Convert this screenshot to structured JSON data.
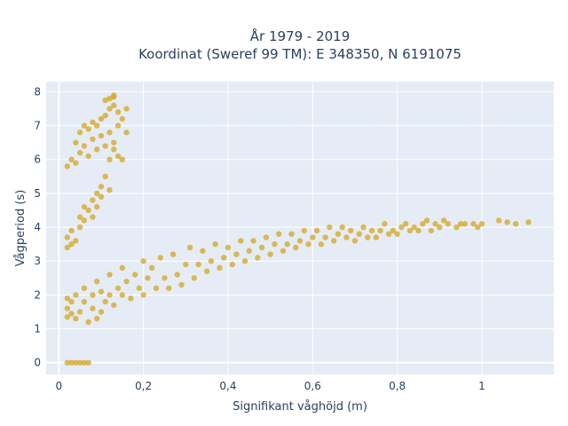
{
  "chart_data": {
    "type": "scatter",
    "title": "År 1979 - 2019",
    "subtitle": "Koordinat (Sweref 99 TM): E 348350, N 6191075",
    "xlabel": "Signifikant våghöjd (m)",
    "ylabel": "Vågperiod (s)",
    "xlim": [
      -0.03,
      1.17
    ],
    "ylim": [
      -0.35,
      8.3
    ],
    "xticks": [
      0,
      0.2,
      0.4,
      0.6,
      0.8,
      1
    ],
    "xtick_labels": [
      "0",
      "0,2",
      "0,4",
      "0,6",
      "0,8",
      "1"
    ],
    "yticks": [
      0,
      1,
      2,
      3,
      4,
      5,
      6,
      7,
      8
    ],
    "ytick_labels": [
      "0",
      "1",
      "2",
      "3",
      "4",
      "5",
      "6",
      "7",
      "8"
    ],
    "grid": true,
    "marker_color": "#d4a520",
    "background_color": "#e5ecf6",
    "series": [
      {
        "points": [
          [
            0.02,
            0
          ],
          [
            0.03,
            0
          ],
          [
            0.04,
            0
          ],
          [
            0.05,
            0
          ],
          [
            0.06,
            0
          ],
          [
            0.07,
            0
          ],
          [
            0.02,
            1.35
          ],
          [
            0.02,
            1.6
          ],
          [
            0.02,
            1.9
          ],
          [
            0.03,
            1.45
          ],
          [
            0.03,
            1.8
          ],
          [
            0.04,
            1.3
          ],
          [
            0.04,
            2.0
          ],
          [
            0.05,
            1.5
          ],
          [
            0.06,
            1.8
          ],
          [
            0.07,
            1.2
          ],
          [
            0.08,
            1.6
          ],
          [
            0.09,
            1.3
          ],
          [
            0.06,
            2.2
          ],
          [
            0.08,
            2.0
          ],
          [
            0.09,
            2.4
          ],
          [
            0.1,
            1.5
          ],
          [
            0.1,
            2.1
          ],
          [
            0.11,
            1.8
          ],
          [
            0.12,
            2.6
          ],
          [
            0.12,
            2.0
          ],
          [
            0.13,
            1.7
          ],
          [
            0.14,
            2.2
          ],
          [
            0.15,
            2.8
          ],
          [
            0.15,
            2.0
          ],
          [
            0.16,
            2.4
          ],
          [
            0.17,
            1.9
          ],
          [
            0.18,
            2.6
          ],
          [
            0.19,
            2.2
          ],
          [
            0.2,
            3.0
          ],
          [
            0.2,
            2.0
          ],
          [
            0.21,
            2.5
          ],
          [
            0.22,
            2.8
          ],
          [
            0.23,
            2.2
          ],
          [
            0.24,
            3.1
          ],
          [
            0.25,
            2.5
          ],
          [
            0.26,
            2.2
          ],
          [
            0.27,
            3.2
          ],
          [
            0.28,
            2.6
          ],
          [
            0.29,
            2.3
          ],
          [
            0.3,
            2.9
          ],
          [
            0.31,
            3.4
          ],
          [
            0.32,
            2.5
          ],
          [
            0.33,
            2.9
          ],
          [
            0.34,
            3.3
          ],
          [
            0.35,
            2.7
          ],
          [
            0.36,
            3.0
          ],
          [
            0.37,
            3.5
          ],
          [
            0.38,
            2.8
          ],
          [
            0.39,
            3.1
          ],
          [
            0.4,
            3.4
          ],
          [
            0.41,
            2.9
          ],
          [
            0.42,
            3.2
          ],
          [
            0.43,
            3.6
          ],
          [
            0.44,
            3.0
          ],
          [
            0.45,
            3.3
          ],
          [
            0.46,
            3.6
          ],
          [
            0.47,
            3.1
          ],
          [
            0.48,
            3.4
          ],
          [
            0.49,
            3.7
          ],
          [
            0.5,
            3.2
          ],
          [
            0.51,
            3.5
          ],
          [
            0.52,
            3.8
          ],
          [
            0.53,
            3.3
          ],
          [
            0.54,
            3.5
          ],
          [
            0.55,
            3.8
          ],
          [
            0.56,
            3.4
          ],
          [
            0.57,
            3.6
          ],
          [
            0.58,
            3.9
          ],
          [
            0.59,
            3.5
          ],
          [
            0.6,
            3.7
          ],
          [
            0.61,
            3.9
          ],
          [
            0.62,
            3.5
          ],
          [
            0.63,
            3.7
          ],
          [
            0.64,
            4.0
          ],
          [
            0.65,
            3.6
          ],
          [
            0.66,
            3.8
          ],
          [
            0.67,
            4.0
          ],
          [
            0.68,
            3.7
          ],
          [
            0.69,
            3.9
          ],
          [
            0.7,
            3.6
          ],
          [
            0.71,
            3.8
          ],
          [
            0.72,
            4.0
          ],
          [
            0.73,
            3.7
          ],
          [
            0.74,
            3.9
          ],
          [
            0.75,
            3.7
          ],
          [
            0.76,
            3.9
          ],
          [
            0.77,
            4.1
          ],
          [
            0.78,
            3.8
          ],
          [
            0.79,
            3.9
          ],
          [
            0.8,
            3.8
          ],
          [
            0.81,
            4.0
          ],
          [
            0.82,
            4.1
          ],
          [
            0.83,
            3.9
          ],
          [
            0.84,
            4.0
          ],
          [
            0.85,
            3.9
          ],
          [
            0.86,
            4.1
          ],
          [
            0.87,
            4.2
          ],
          [
            0.88,
            3.9
          ],
          [
            0.89,
            4.1
          ],
          [
            0.9,
            4.0
          ],
          [
            0.91,
            4.2
          ],
          [
            0.92,
            4.1
          ],
          [
            0.94,
            4.0
          ],
          [
            0.95,
            4.1
          ],
          [
            0.96,
            4.1
          ],
          [
            0.98,
            4.1
          ],
          [
            0.99,
            4.0
          ],
          [
            1.0,
            4.1
          ],
          [
            1.04,
            4.2
          ],
          [
            1.06,
            4.15
          ],
          [
            1.08,
            4.1
          ],
          [
            1.11,
            4.15
          ],
          [
            0.02,
            3.4
          ],
          [
            0.02,
            3.7
          ],
          [
            0.03,
            3.5
          ],
          [
            0.03,
            3.9
          ],
          [
            0.04,
            3.6
          ],
          [
            0.05,
            4.0
          ],
          [
            0.05,
            4.3
          ],
          [
            0.06,
            4.2
          ],
          [
            0.06,
            4.6
          ],
          [
            0.07,
            4.5
          ],
          [
            0.08,
            4.8
          ],
          [
            0.08,
            4.3
          ],
          [
            0.09,
            5.0
          ],
          [
            0.09,
            4.6
          ],
          [
            0.1,
            5.2
          ],
          [
            0.1,
            4.9
          ],
          [
            0.11,
            5.5
          ],
          [
            0.12,
            5.1
          ],
          [
            0.02,
            5.8
          ],
          [
            0.03,
            6.0
          ],
          [
            0.04,
            5.9
          ],
          [
            0.04,
            6.5
          ],
          [
            0.05,
            6.2
          ],
          [
            0.05,
            6.8
          ],
          [
            0.06,
            6.4
          ],
          [
            0.06,
            7.0
          ],
          [
            0.07,
            6.1
          ],
          [
            0.07,
            6.9
          ],
          [
            0.08,
            6.6
          ],
          [
            0.08,
            7.1
          ],
          [
            0.09,
            6.3
          ],
          [
            0.09,
            7.0
          ],
          [
            0.1,
            6.7
          ],
          [
            0.1,
            7.2
          ],
          [
            0.11,
            6.4
          ],
          [
            0.11,
            7.3
          ],
          [
            0.12,
            6.8
          ],
          [
            0.12,
            7.5
          ],
          [
            0.13,
            6.5
          ],
          [
            0.13,
            7.6
          ],
          [
            0.14,
            7.0
          ],
          [
            0.14,
            7.4
          ],
          [
            0.15,
            7.2
          ],
          [
            0.16,
            6.8
          ],
          [
            0.16,
            7.5
          ],
          [
            0.11,
            7.75
          ],
          [
            0.12,
            7.8
          ],
          [
            0.13,
            7.9
          ],
          [
            0.13,
            7.85
          ],
          [
            0.12,
            6.0
          ],
          [
            0.13,
            6.3
          ],
          [
            0.14,
            6.1
          ],
          [
            0.15,
            6.0
          ]
        ]
      }
    ]
  }
}
